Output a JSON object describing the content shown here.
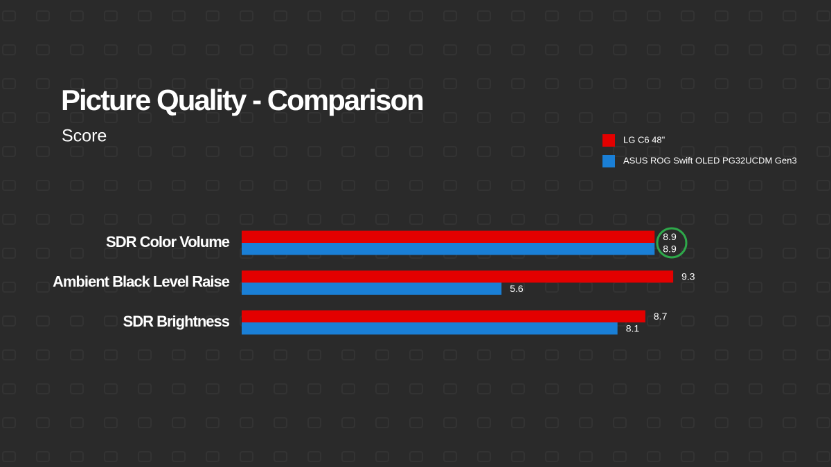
{
  "chart_data": {
    "type": "bar",
    "orientation": "horizontal",
    "title": "Picture Quality - Comparison",
    "subtitle": "Score",
    "categories": [
      "SDR Color Volume",
      "Ambient Black Level Raise",
      "SDR Brightness"
    ],
    "series": [
      {
        "name": "LG C6 48\"",
        "color": "#e30000",
        "values": [
          8.9,
          9.3,
          8.7
        ]
      },
      {
        "name": "ASUS ROG Swift OLED PG32UCDM Gen3",
        "color": "#1a7fd6",
        "values": [
          8.9,
          5.6,
          8.1
        ]
      }
    ],
    "xlim": [
      0,
      10
    ],
    "legend": "top-right"
  }
}
